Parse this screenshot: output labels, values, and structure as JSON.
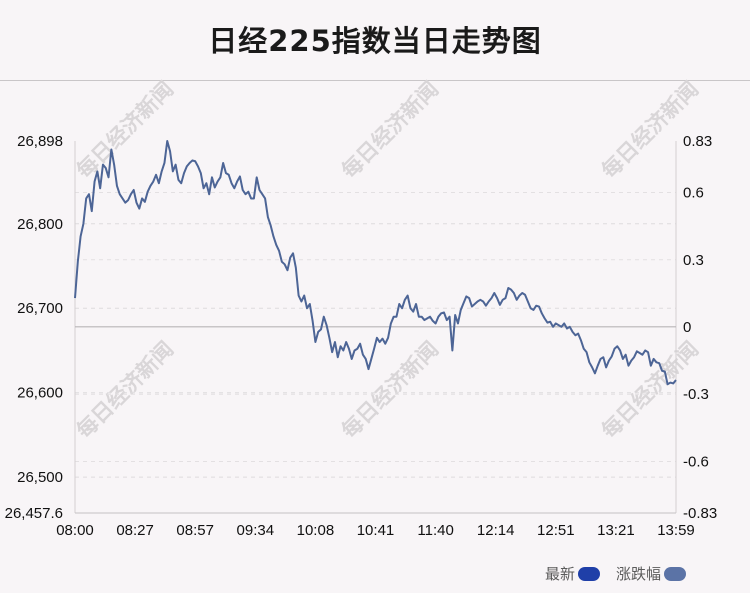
{
  "title": "日经225指数当日走势图",
  "watermark_text": "每日经济新闻",
  "legend": [
    {
      "label": "最新",
      "color": "#1f3fa8"
    },
    {
      "label": "涨跌幅",
      "color": "#5b73a6"
    }
  ],
  "line_color": "#4d6596",
  "chart_data": {
    "type": "line",
    "title": "日经225指数当日走势图",
    "x_ticks": [
      "08:00",
      "08:27",
      "08:57",
      "09:34",
      "10:08",
      "10:41",
      "11:40",
      "12:14",
      "12:51",
      "13:21",
      "13:59"
    ],
    "y_left_ticks": [
      "26,898",
      "26,800",
      "26,700",
      "26,600",
      "26,500",
      "26,457.6"
    ],
    "y_left_tick_values": [
      26898,
      26800,
      26700,
      26600,
      26500,
      26457.6
    ],
    "y_right_ticks": [
      "0.83",
      "0.6",
      "0.3",
      "0",
      "-0.3",
      "-0.6",
      "-0.83"
    ],
    "y_right_tick_values": [
      0.83,
      0.6,
      0.3,
      0,
      -0.3,
      -0.6,
      -0.83
    ],
    "ylim_left": [
      26457.6,
      26898
    ],
    "ylim_right": [
      -0.83,
      0.83
    ],
    "baseline_value": 26678,
    "grid": true,
    "series": [
      {
        "name": "最新",
        "x_index_range": [
          0,
          200
        ],
        "values": [
          26712,
          26755,
          26785,
          26800,
          26830,
          26835,
          26815,
          26850,
          26862,
          26842,
          26870,
          26866,
          26855,
          26888,
          26870,
          26845,
          26835,
          26830,
          26825,
          26828,
          26835,
          26840,
          26825,
          26818,
          26830,
          26826,
          26838,
          26845,
          26850,
          26858,
          26848,
          26862,
          26872,
          26898,
          26886,
          26862,
          26870,
          26852,
          26848,
          26860,
          26868,
          26872,
          26875,
          26874,
          26868,
          26860,
          26842,
          26848,
          26835,
          26855,
          26843,
          26850,
          26855,
          26872,
          26860,
          26858,
          26848,
          26842,
          26850,
          26856,
          26840,
          26835,
          26838,
          26830,
          26830,
          26855,
          26840,
          26835,
          26830,
          26808,
          26798,
          26785,
          26775,
          26768,
          26755,
          26752,
          26745,
          26760,
          26765,
          26748,
          26715,
          26708,
          26715,
          26700,
          26705,
          26685,
          26660,
          26672,
          26675,
          26690,
          26680,
          26665,
          26648,
          26660,
          26642,
          26655,
          26650,
          26660,
          26652,
          26640,
          26650,
          26652,
          26658,
          26645,
          26640,
          26628,
          26640,
          26652,
          26665,
          26660,
          26664,
          26658,
          26665,
          26682,
          26690,
          26690,
          26705,
          26700,
          26710,
          26715,
          26700,
          26696,
          26705,
          26690,
          26690,
          26686,
          26688,
          26690,
          26685,
          26682,
          26690,
          26694,
          26695,
          26686,
          26690,
          26650,
          26692,
          26682,
          26698,
          26706,
          26714,
          26712,
          26702,
          26705,
          26708,
          26710,
          26708,
          26703,
          26708,
          26712,
          26718,
          26712,
          26704,
          26710,
          26712,
          26724,
          26722,
          26718,
          26710,
          26715,
          26718,
          26716,
          26708,
          26700,
          26698,
          26703,
          26702,
          26694,
          26688,
          26683,
          26684,
          26678,
          26682,
          26680,
          26678,
          26682,
          26676,
          26678,
          26672,
          26668,
          26670,
          26662,
          26652,
          26648,
          26636,
          26630,
          26623,
          26632,
          26640,
          26642,
          26630,
          26638,
          26643,
          26652,
          26655,
          26650,
          26640,
          26645,
          26632,
          26638,
          26642,
          26649,
          26647,
          26645,
          26650,
          26648,
          26632,
          26640,
          26636,
          26635,
          26626,
          26625,
          26610,
          26612,
          26611,
          26615
        ]
      }
    ]
  }
}
